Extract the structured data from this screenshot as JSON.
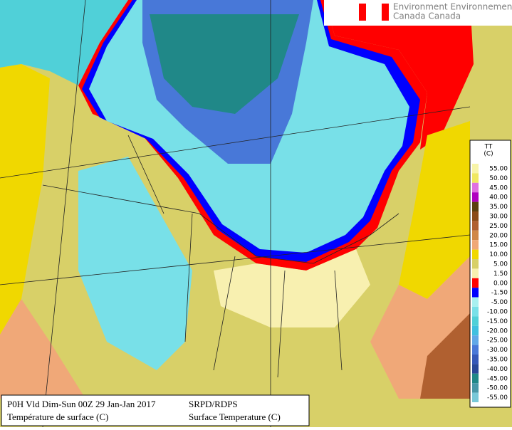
{
  "header": {
    "agency_lines": [
      "Environment Environnement",
      "Canada Canada"
    ]
  },
  "legend": {
    "title_lines": [
      "TT",
      "(C)"
    ],
    "rows": [
      {
        "label": "55.00",
        "color": "#f8f4a8"
      },
      {
        "label": "50.00",
        "color": "#f0e860"
      },
      {
        "label": "45.00",
        "color": "#e070e0"
      },
      {
        "label": "40.00",
        "color": "#b000c0"
      },
      {
        "label": "35.00",
        "color": "#5a4010"
      },
      {
        "label": "30.00",
        "color": "#8a4a18"
      },
      {
        "label": "25.00",
        "color": "#b06030"
      },
      {
        "label": "20.00",
        "color": "#d08848"
      },
      {
        "label": "15.00",
        "color": "#f0a878"
      },
      {
        "label": "10.00",
        "color": "#f0d800"
      },
      {
        "label": "5.00",
        "color": "#d8d068"
      },
      {
        "label": "1.50",
        "color": "#f8f0b0"
      },
      {
        "label": "0.00",
        "color": "#ff0000"
      },
      {
        "label": "-1.50",
        "color": "#0000ff"
      },
      {
        "label": "-5.00",
        "color": "#a8f0f0"
      },
      {
        "label": "-10.00",
        "color": "#78e0e8"
      },
      {
        "label": "-15.00",
        "color": "#50d0d8"
      },
      {
        "label": "-20.00",
        "color": "#40c0e0"
      },
      {
        "label": "-25.00",
        "color": "#60a8e8"
      },
      {
        "label": "-30.00",
        "color": "#4878d8"
      },
      {
        "label": "-35.00",
        "color": "#3458b8"
      },
      {
        "label": "-40.00",
        "color": "#284898"
      },
      {
        "label": "-45.00",
        "color": "#208888"
      },
      {
        "label": "-50.00",
        "color": "#4898a8"
      },
      {
        "label": "-55.00",
        "color": "#78c8d8"
      }
    ]
  },
  "footer": {
    "validity": "P0H Vld Dim-Sun 00Z 29 Jan-Jan 2017",
    "title_fr": "Température de surface (C)",
    "model": "SRPD/RDPS",
    "title_en": "Surface Temperature (C)"
  }
}
